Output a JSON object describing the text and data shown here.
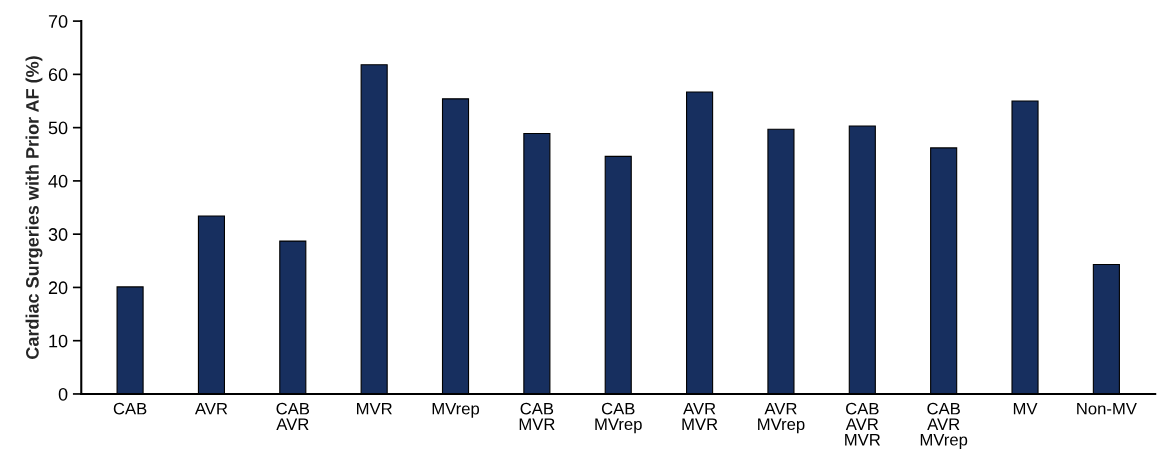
{
  "chart_data": {
    "type": "bar",
    "ylabel": "Cardiac Surgeries with Prior AF (%)",
    "categories": [
      "CAB",
      "AVR",
      "CAB\nAVR",
      "MVR",
      "MVrep",
      "CAB\nMVR",
      "CAB\nMVrep",
      "AVR\nMVR",
      "AVR\nMVrep",
      "CAB\nAVR\nMVR",
      "CAB\nAVR\nMVrep",
      "MV",
      "Non-MV"
    ],
    "values": [
      20.1,
      33.4,
      28.7,
      61.8,
      55.4,
      48.9,
      44.6,
      56.7,
      49.7,
      50.3,
      46.2,
      55.0,
      24.3
    ],
    "color": "#172f5f",
    "ylim": [
      0,
      70
    ],
    "yticks": [
      0,
      10,
      20,
      30,
      40,
      50,
      60,
      70
    ],
    "grid": false,
    "legend": false
  }
}
